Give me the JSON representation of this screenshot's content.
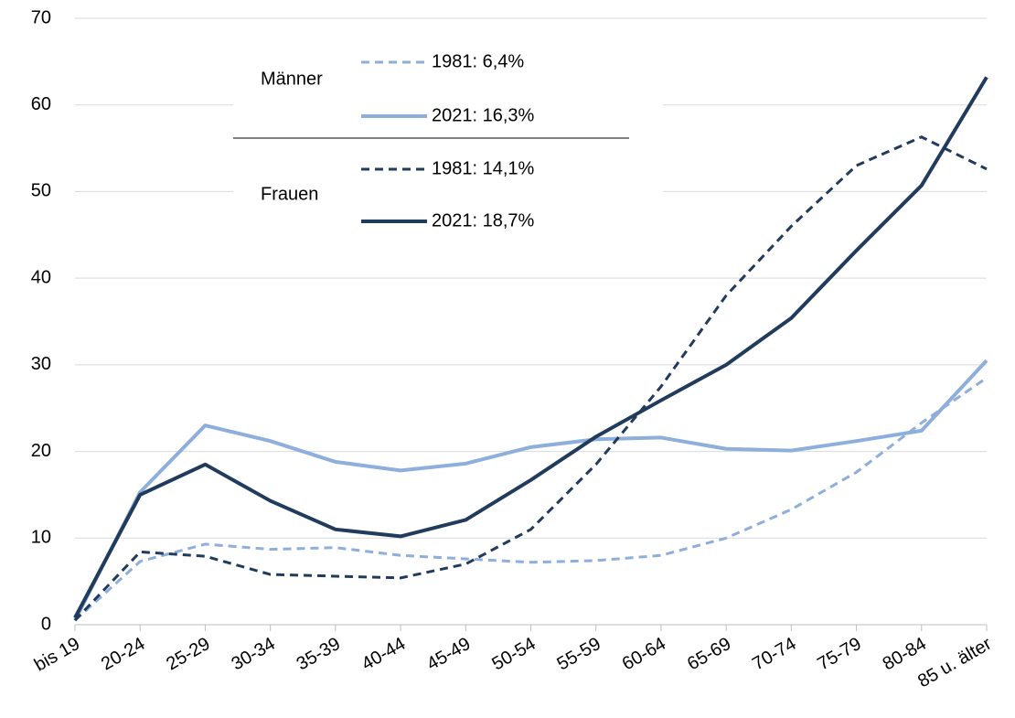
{
  "chart_data": {
    "type": "line",
    "categories": [
      "bis 19",
      "20-24",
      "25-29",
      "30-34",
      "35-39",
      "40-44",
      "45-49",
      "50-54",
      "55-59",
      "60-64",
      "65-69",
      "70-74",
      "75-79",
      "80-84",
      "85 u. älter"
    ],
    "legend_groups": [
      "Männer",
      "Frauen"
    ],
    "series": [
      {
        "name": "1981: 6,4%",
        "group": 0,
        "color": "#8eaedb",
        "dashed": true,
        "values": [
          0.5,
          7.3,
          9.3,
          8.7,
          8.9,
          8.0,
          7.6,
          7.2,
          7.4,
          8.0,
          10.0,
          13.3,
          17.6,
          23.3,
          28.5
        ]
      },
      {
        "name": "2021: 16,3%",
        "group": 0,
        "color": "#8eaedb",
        "dashed": false,
        "values": [
          0.5,
          15.3,
          23.0,
          21.2,
          18.8,
          17.8,
          18.6,
          20.5,
          21.4,
          21.6,
          20.3,
          20.1,
          21.2,
          22.4,
          30.5
        ]
      },
      {
        "name": "1981: 14,1%",
        "group": 1,
        "color": "#213b5c",
        "dashed": true,
        "values": [
          0.5,
          8.4,
          7.9,
          5.8,
          5.6,
          5.4,
          7.0,
          11.0,
          18.5,
          27.5,
          38.0,
          46.0,
          53.0,
          56.3,
          52.6
        ]
      },
      {
        "name": "2021: 18,7%",
        "group": 1,
        "color": "#213b5c",
        "dashed": false,
        "values": [
          0.8,
          15.0,
          18.5,
          14.3,
          11.0,
          10.2,
          12.1,
          16.7,
          21.7,
          25.9,
          30.0,
          35.4,
          43.2,
          50.7,
          63.2
        ]
      }
    ],
    "ylim": [
      0,
      70
    ],
    "yticks": [
      0,
      10,
      20,
      30,
      40,
      50,
      60,
      70
    ],
    "grid": true
  }
}
